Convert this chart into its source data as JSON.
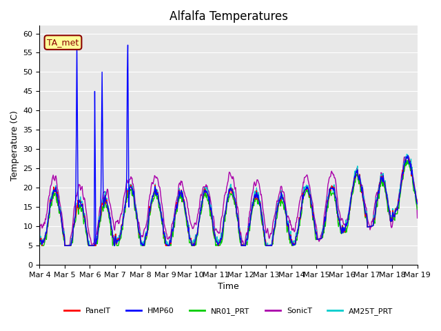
{
  "title": "Alfalfa Temperatures",
  "ylabel": "Temperature (C)",
  "xlabel": "Time",
  "ylim": [
    0,
    62
  ],
  "yticks": [
    0,
    5,
    10,
    15,
    20,
    25,
    30,
    35,
    40,
    45,
    50,
    55,
    60
  ],
  "xtick_labels": [
    "Mar 4",
    "Mar 5",
    "Mar 6",
    "Mar 7",
    "Mar 8",
    "Mar 9",
    "Mar 10",
    "Mar 11",
    "Mar 12",
    "Mar 13",
    "Mar 14",
    "Mar 15",
    "Mar 16",
    "Mar 17",
    "Mar 18",
    "Mar 19"
  ],
  "annotation_text": "TA_met",
  "annotation_color": "#8B0000",
  "annotation_bg": "#FFFF99",
  "bg_color": "#E8E8E8",
  "series": {
    "PanelT": {
      "color": "#FF0000",
      "lw": 1.0
    },
    "HMP60": {
      "color": "#0000FF",
      "lw": 1.0
    },
    "NR01_PRT": {
      "color": "#00CC00",
      "lw": 1.0
    },
    "SonicT": {
      "color": "#AA00AA",
      "lw": 1.0
    },
    "AM25T_PRT": {
      "color": "#00CCCC",
      "lw": 1.0
    }
  }
}
